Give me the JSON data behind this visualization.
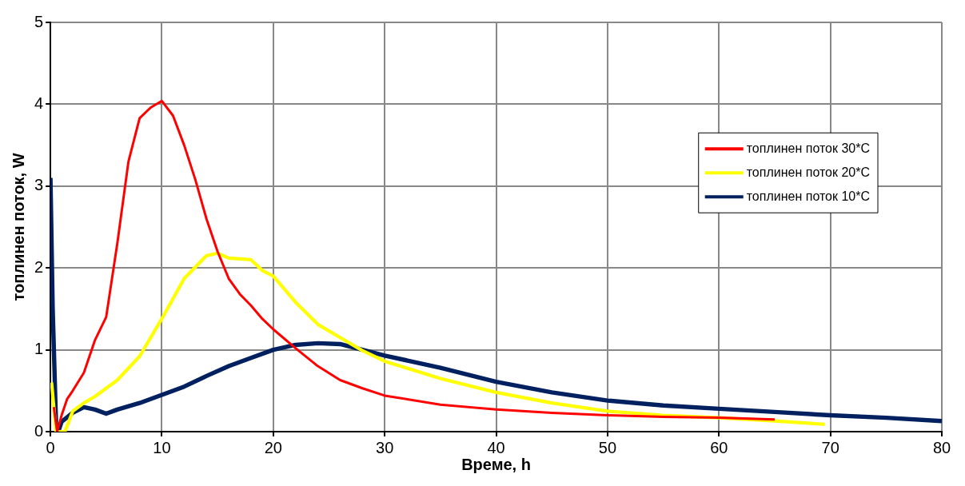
{
  "chart_data": {
    "type": "line",
    "xlabel": "Време, h",
    "ylabel": "топлинен поток, W",
    "xlim": [
      0,
      80
    ],
    "xticks": [
      0,
      10,
      20,
      30,
      40,
      50,
      60,
      70,
      80
    ],
    "ylim": [
      0,
      5
    ],
    "yticks": [
      0,
      1,
      2,
      3,
      4,
      5
    ],
    "grid": true,
    "legend": "right",
    "marker": "none",
    "line_style": "solid",
    "series": [
      {
        "name": "топлинен поток 30*C",
        "color": "#ff0000",
        "x": [
          0.3,
          0.6,
          1,
          1.5,
          2,
          3,
          4,
          5,
          6,
          7,
          8,
          9,
          10,
          11,
          12,
          13,
          14,
          15,
          16,
          17,
          18,
          19,
          20,
          22,
          24,
          26,
          28,
          30,
          35,
          40,
          45,
          50,
          55,
          60,
          65
        ],
        "values": [
          0.3,
          0,
          0.2,
          0.4,
          0.5,
          0.72,
          1.12,
          1.4,
          2.3,
          3.3,
          3.83,
          3.96,
          4.04,
          3.86,
          3.5,
          3.08,
          2.6,
          2.2,
          1.87,
          1.68,
          1.54,
          1.38,
          1.25,
          1.02,
          0.8,
          0.63,
          0.53,
          0.44,
          0.33,
          0.27,
          0.23,
          0.2,
          0.18,
          0.17,
          0.15
        ]
      },
      {
        "name": "топлинен поток 20*C",
        "color": "#ffff00",
        "x": [
          0.1,
          0.5,
          1.3,
          2,
          3,
          4,
          6,
          8,
          10,
          12,
          14,
          15,
          16,
          18,
          19,
          20,
          22,
          24,
          26,
          28,
          30,
          35,
          40,
          45,
          50,
          55,
          60,
          65,
          69.5
        ],
        "values": [
          0.6,
          0,
          0,
          0.25,
          0.35,
          0.43,
          0.63,
          0.92,
          1.38,
          1.87,
          2.15,
          2.18,
          2.12,
          2.1,
          1.97,
          1.9,
          1.58,
          1.31,
          1.15,
          0.99,
          0.86,
          0.65,
          0.48,
          0.35,
          0.25,
          0.2,
          0.17,
          0.13,
          0.09
        ]
      },
      {
        "name": "топлинен поток 10*C",
        "color": "#002060",
        "x": [
          0,
          0.2,
          0.5,
          0.7,
          1,
          2,
          3,
          4,
          5,
          6,
          8,
          10,
          12,
          14,
          16,
          18,
          20,
          22,
          24,
          26,
          28,
          30,
          35,
          40,
          45,
          50,
          55,
          60,
          65,
          70,
          75,
          80
        ],
        "values": [
          3.1,
          1.5,
          0.1,
          0,
          0.12,
          0.23,
          0.3,
          0.27,
          0.22,
          0.27,
          0.35,
          0.45,
          0.55,
          0.68,
          0.8,
          0.9,
          1.0,
          1.06,
          1.08,
          1.07,
          1.0,
          0.93,
          0.78,
          0.61,
          0.48,
          0.38,
          0.32,
          0.28,
          0.24,
          0.2,
          0.17,
          0.13
        ]
      }
    ]
  }
}
